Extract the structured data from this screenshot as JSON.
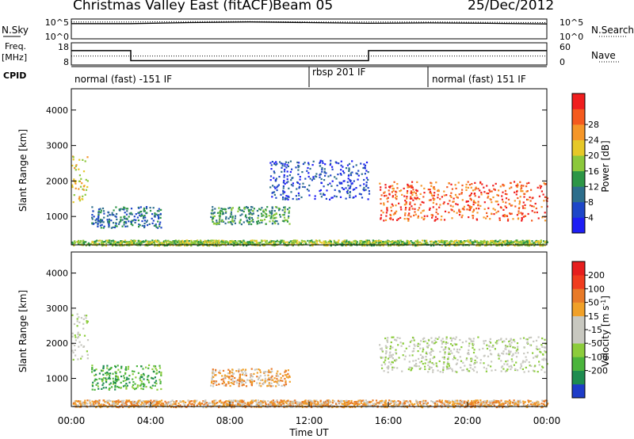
{
  "header": {
    "title": "Christmas Valley East (fitACF)",
    "beam": "Beam 05",
    "date": "25/Dec/2012"
  },
  "strip_labels": {
    "nsky": "N.Sky",
    "nsearch": "N.Search",
    "freq_line1": "Freq.",
    "freq_line2": "[MHz]",
    "nave": "Nave",
    "cpid": "CPID"
  },
  "chart_data": [
    {
      "type": "line",
      "panel": "noise",
      "series": [
        {
          "name": "N.Sky",
          "style": "solid",
          "values_log10": [
            4.1,
            4.1,
            4.4,
            4.6,
            4.4,
            4.2,
            4.3,
            4.2,
            4.0
          ]
        },
        {
          "name": "N.Search",
          "style": "dotted",
          "values_log10": [
            4.6,
            4.6,
            4.7,
            4.7,
            4.6,
            4.6,
            4.6,
            4.5,
            4.4
          ]
        }
      ],
      "x": [
        "00:00",
        "03:00",
        "06:00",
        "09:00",
        "12:00",
        "15:00",
        "18:00",
        "21:00",
        "24:00"
      ],
      "y_ticks_left": [
        "10^5",
        "10^0"
      ],
      "y_ticks_right": [
        "10^5",
        "10^0"
      ]
    },
    {
      "type": "line",
      "panel": "freq_nave",
      "series": [
        {
          "name": "Freq.",
          "style": "solid",
          "unit": "MHz",
          "segments": [
            {
              "from": "00:00",
              "to": "03:00",
              "value": 15.0
            },
            {
              "from": "03:00",
              "to": "15:00",
              "value": 9.5
            },
            {
              "from": "15:00",
              "to": "24:00",
              "value": 15.0
            }
          ]
        },
        {
          "name": "Nave",
          "style": "dotted",
          "value": 24
        }
      ],
      "y_ticks_left": [
        "18",
        "8"
      ],
      "y_ticks_right": [
        "60",
        "0"
      ]
    },
    {
      "type": "table",
      "panel": "cpid",
      "segments": [
        {
          "label": "normal (fast) -151 IF",
          "from": "00:00",
          "to": "12:00"
        },
        {
          "label": "rbsp 201 IF",
          "from": "12:00",
          "to": "18:00"
        },
        {
          "label": "normal (fast) 151 IF",
          "from": "18:00",
          "to": "24:00"
        }
      ]
    },
    {
      "type": "heatmap",
      "panel": "power",
      "ylabel": "Slant Range [km]",
      "y_ticks": [
        1000,
        2000,
        3000,
        4000
      ],
      "ylim": [
        200,
        4600
      ],
      "colorbar_label": "Power [dB]",
      "colorbar_ticks": [
        "4",
        "8",
        "12",
        "16",
        "20",
        "24",
        "28"
      ],
      "colorbar_colors": [
        "#1e1ef5",
        "#1e46c8",
        "#2d6e8c",
        "#2d9646",
        "#8cc83c",
        "#e6c828",
        "#f59628",
        "#f55a1e",
        "#f01e1e"
      ],
      "echo_regions": [
        {
          "t_start": 0.0,
          "t_end": 0.8,
          "r_start": 1400,
          "r_end": 2800,
          "level": 5
        },
        {
          "t_start": 1.0,
          "t_end": 4.5,
          "r_start": 700,
          "r_end": 1300,
          "level": 2
        },
        {
          "t_start": 7.0,
          "t_end": 11.0,
          "r_start": 800,
          "r_end": 1300,
          "level": 3
        },
        {
          "t_start": 10.0,
          "t_end": 15.0,
          "r_start": 1500,
          "r_end": 2600,
          "level": 1
        },
        {
          "t_start": 15.5,
          "t_end": 24.0,
          "r_start": 900,
          "r_end": 2000,
          "level": 7
        },
        {
          "t_start": 0.0,
          "t_end": 24.0,
          "r_start": 200,
          "r_end": 350,
          "level": 4
        }
      ]
    },
    {
      "type": "heatmap",
      "panel": "velocity",
      "ylabel": "Slant Range [km]",
      "xlabel": "Time UT",
      "y_ticks": [
        1000,
        2000,
        3000,
        4000
      ],
      "ylim": [
        200,
        4600
      ],
      "x_ticks": [
        "00:00",
        "04:00",
        "08:00",
        "12:00",
        "16:00",
        "20:00",
        "00:00"
      ],
      "colorbar_label": "Velocity [m s^-1]",
      "colorbar_ticks": [
        "200",
        "100",
        "50",
        "15",
        "-15",
        "-50",
        "-100",
        "-200"
      ],
      "colorbar_colors": [
        "#1e3cc8",
        "#1e8c50",
        "#4bb43c",
        "#8ccc3c",
        "#c8c8c0",
        "#c8c8c0",
        "#f0a028",
        "#e87a28",
        "#f03c1e",
        "#e61e1e"
      ],
      "echo_regions": [
        {
          "t_start": 0.0,
          "t_end": 0.8,
          "r_start": 1500,
          "r_end": 2900,
          "level": 4
        },
        {
          "t_start": 1.0,
          "t_end": 4.5,
          "r_start": 700,
          "r_end": 1400,
          "level": 2
        },
        {
          "t_start": 7.0,
          "t_end": 11.0,
          "r_start": 800,
          "r_end": 1300,
          "level": 6
        },
        {
          "t_start": 15.5,
          "t_end": 24.0,
          "r_start": 1200,
          "r_end": 2200,
          "level": 4
        },
        {
          "t_start": 0.0,
          "t_end": 24.0,
          "r_start": 200,
          "r_end": 400,
          "level": 6
        }
      ]
    }
  ]
}
